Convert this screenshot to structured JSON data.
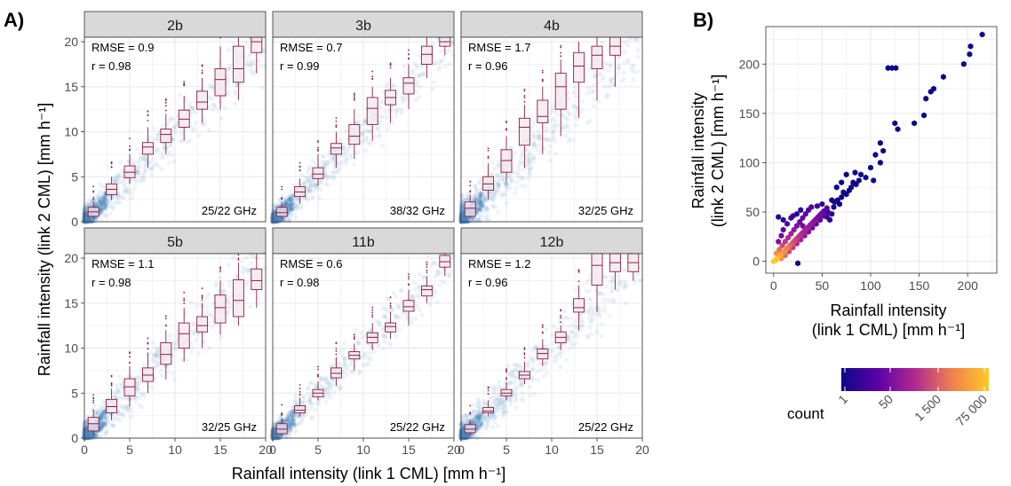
{
  "panel_labels": {
    "a": "A)",
    "b": "B)"
  },
  "colors": {
    "strip_bg": "#d9d9d9",
    "grid": "#ebebeb",
    "points": "#4a87c0",
    "box_stroke": "#8b2040",
    "box_fill": "#f4e6ee",
    "hex_low": "#0d0887",
    "hex_mid": "#b12a90",
    "hex_high": "#fdca26"
  },
  "chart_data": [
    {
      "type": "scatter",
      "subtype": "faceted scatter with binned boxplots",
      "xlabel": "Rainfall intensity (link 1 CML) [mm h⁻¹]",
      "ylabel": "Rainfall intensity (link 2 CML) [mm h⁻¹]",
      "xlim": [
        0,
        20
      ],
      "ylim": [
        0,
        20.5
      ],
      "x_ticks": [
        "0",
        "5",
        "10",
        "15",
        "20"
      ],
      "y_ticks": [
        "0",
        "5",
        "10",
        "15",
        "20"
      ],
      "grid": true,
      "facets": [
        {
          "name": "2b",
          "rmse": "RMSE = 0.9",
          "r": "r = 0.98",
          "freq": "25/22 GHz",
          "boxes": [
            [
              1,
              0.3,
              0.6,
              1.1,
              1.6,
              2.2
            ],
            [
              3,
              2.4,
              3.0,
              3.6,
              4.2,
              5.0
            ],
            [
              5,
              4.2,
              4.9,
              5.5,
              6.2,
              7.5
            ],
            [
              7,
              6.0,
              7.5,
              8.3,
              8.8,
              10.5
            ],
            [
              9,
              7.5,
              8.8,
              9.7,
              10.3,
              12.0
            ],
            [
              11,
              9.0,
              10.5,
              11.4,
              12.4,
              14.0
            ],
            [
              13,
              11.0,
              12.5,
              13.3,
              14.5,
              16.0
            ],
            [
              15,
              12.5,
              14.0,
              15.8,
              17.0,
              19.5
            ],
            [
              17,
              13.5,
              15.5,
              17.0,
              19.5,
              20.5
            ],
            [
              19,
              16.5,
              18.8,
              20.0,
              20.5,
              20.5
            ]
          ]
        },
        {
          "name": "3b",
          "rmse": "RMSE = 0.7",
          "r": "r = 0.99",
          "freq": "38/32 GHz",
          "boxes": [
            [
              1,
              0.3,
              0.6,
              1.0,
              1.6,
              2.2
            ],
            [
              3,
              2.0,
              2.8,
              3.3,
              3.9,
              4.8
            ],
            [
              5,
              4.0,
              4.8,
              5.3,
              6.0,
              7.5
            ],
            [
              7,
              6.0,
              7.5,
              8.2,
              8.7,
              10.0
            ],
            [
              9,
              7.0,
              8.6,
              9.5,
              10.8,
              12.5
            ],
            [
              11,
              9.0,
              10.8,
              12.6,
              13.8,
              15.0
            ],
            [
              13,
              11.0,
              13.0,
              13.8,
              14.6,
              16.0
            ],
            [
              15,
              12.5,
              14.2,
              15.4,
              16.0,
              17.5
            ],
            [
              17,
              16.0,
              17.5,
              18.6,
              19.5,
              20.5
            ],
            [
              19,
              18.5,
              19.5,
              20.0,
              20.5,
              20.5
            ]
          ]
        },
        {
          "name": "4b",
          "rmse": "RMSE = 1.7",
          "r": "r = 0.96",
          "freq": "32/25 GHz",
          "boxes": [
            [
              1,
              0.3,
              0.6,
              1.5,
              2.2,
              3.0
            ],
            [
              3,
              2.5,
              3.5,
              4.2,
              5.0,
              6.5
            ],
            [
              5,
              4.5,
              5.5,
              6.8,
              8.0,
              9.5
            ],
            [
              7,
              6.0,
              8.5,
              10.5,
              11.5,
              13.0
            ],
            [
              9,
              7.5,
              11.0,
              11.7,
              13.5,
              15.0
            ],
            [
              11,
              9.5,
              12.5,
              15.0,
              16.5,
              18.0
            ],
            [
              13,
              11.5,
              15.5,
              17.3,
              18.8,
              20.0
            ],
            [
              15,
              13.5,
              17.0,
              18.5,
              19.5,
              20.5
            ],
            [
              17,
              15.0,
              18.5,
              19.5,
              20.5,
              20.5
            ]
          ]
        },
        {
          "name": "5b",
          "rmse": "RMSE = 1.1",
          "r": "r = 0.98",
          "freq": "32/25 GHz",
          "boxes": [
            [
              1,
              0.3,
              0.8,
              1.6,
              2.3,
              3.2
            ],
            [
              3,
              2.0,
              2.8,
              3.5,
              4.3,
              5.5
            ],
            [
              5,
              3.5,
              4.7,
              5.7,
              6.6,
              8.0
            ],
            [
              7,
              5.0,
              6.3,
              7.0,
              7.8,
              9.5
            ],
            [
              9,
              6.5,
              8.2,
              9.3,
              10.6,
              12.0
            ],
            [
              11,
              8.5,
              10.0,
              11.6,
              12.8,
              14.5
            ],
            [
              13,
              10.0,
              11.8,
              12.5,
              13.5,
              15.0
            ],
            [
              15,
              11.5,
              12.8,
              14.5,
              15.9,
              17.5
            ],
            [
              17,
              12.5,
              13.5,
              15.3,
              17.6,
              19.5
            ],
            [
              19,
              14.5,
              16.5,
              17.5,
              18.8,
              20.5
            ]
          ]
        },
        {
          "name": "11b",
          "rmse": "RMSE = 0.6",
          "r": "r = 0.98",
          "freq": "25/22 GHz",
          "boxes": [
            [
              1,
              0.3,
              0.5,
              1.0,
              1.6,
              2.2
            ],
            [
              3,
              2.4,
              2.8,
              3.1,
              3.6,
              4.5
            ],
            [
              5,
              4.2,
              4.6,
              5.0,
              5.4,
              6.3
            ],
            [
              7,
              5.8,
              6.7,
              7.2,
              7.8,
              9.0
            ],
            [
              9,
              7.5,
              8.8,
              9.2,
              9.6,
              10.5
            ],
            [
              11,
              9.8,
              10.6,
              11.2,
              11.7,
              12.8
            ],
            [
              13,
              11.0,
              11.8,
              12.4,
              12.8,
              14.0
            ],
            [
              15,
              12.5,
              14.1,
              14.6,
              15.3,
              16.5
            ],
            [
              17,
              15.0,
              15.8,
              16.5,
              16.9,
              18.0
            ],
            [
              19,
              18.0,
              19.0,
              19.6,
              20.3,
              20.5
            ]
          ]
        },
        {
          "name": "12b",
          "rmse": "RMSE = 1.2",
          "r": "r = 0.96",
          "freq": "25/22 GHz",
          "boxes": [
            [
              1,
              0.3,
              0.6,
              1.0,
              1.5,
              2.0
            ],
            [
              3,
              2.4,
              2.8,
              3.0,
              3.4,
              4.2
            ],
            [
              5,
              4.2,
              4.7,
              5.0,
              5.4,
              6.2
            ],
            [
              7,
              6.0,
              6.6,
              7.0,
              7.4,
              8.5
            ],
            [
              9,
              8.0,
              8.8,
              9.4,
              9.9,
              11.0
            ],
            [
              11,
              9.8,
              10.6,
              11.2,
              11.8,
              12.5
            ],
            [
              13,
              12.0,
              14.0,
              14.5,
              15.5,
              17.0
            ],
            [
              15,
              14.0,
              17.0,
              19.2,
              20.5,
              20.5
            ],
            [
              17,
              16.5,
              18.5,
              19.5,
              20.5,
              20.5
            ],
            [
              19,
              17.5,
              18.5,
              19.5,
              20.5,
              20.5
            ]
          ]
        }
      ]
    },
    {
      "type": "scatter",
      "subtype": "hexbin",
      "xlabel_lines": [
        "Rainfall intensity",
        "(link 1 CML) [mm h⁻¹]"
      ],
      "ylabel_lines": [
        "Rainfall intensity",
        "(link 2 CML) [mm h⁻¹]"
      ],
      "xlim": [
        -8,
        230
      ],
      "ylim": [
        -12,
        238
      ],
      "x_ticks": [
        "0",
        "50",
        "100",
        "150",
        "200"
      ],
      "y_ticks": [
        "0",
        "50",
        "100",
        "150",
        "200"
      ],
      "grid": true,
      "legend": {
        "title": "count",
        "position": "bottom",
        "labels": [
          "1",
          "50",
          "1 500",
          "75 000"
        ]
      },
      "points": [
        {
          "x": 0,
          "y": 0,
          "c": 1.0
        },
        {
          "x": 2,
          "y": 1,
          "c": 0.98
        },
        {
          "x": 4,
          "y": 3,
          "c": 0.95
        },
        {
          "x": 6,
          "y": 5,
          "c": 0.9
        },
        {
          "x": 8,
          "y": 7,
          "c": 0.86
        },
        {
          "x": 10,
          "y": 9,
          "c": 0.82
        },
        {
          "x": 12,
          "y": 11,
          "c": 0.78
        },
        {
          "x": 14,
          "y": 13,
          "c": 0.74
        },
        {
          "x": 16,
          "y": 15,
          "c": 0.7
        },
        {
          "x": 18,
          "y": 17,
          "c": 0.66
        },
        {
          "x": 20,
          "y": 19,
          "c": 0.62
        },
        {
          "x": 22,
          "y": 21,
          "c": 0.58
        },
        {
          "x": 24,
          "y": 23,
          "c": 0.55
        },
        {
          "x": 26,
          "y": 25,
          "c": 0.52
        },
        {
          "x": 28,
          "y": 27,
          "c": 0.5
        },
        {
          "x": 30,
          "y": 29,
          "c": 0.48
        },
        {
          "x": 32,
          "y": 31,
          "c": 0.46
        },
        {
          "x": 34,
          "y": 33,
          "c": 0.44
        },
        {
          "x": 36,
          "y": 35,
          "c": 0.42
        },
        {
          "x": 38,
          "y": 37,
          "c": 0.4
        },
        {
          "x": 40,
          "y": 39,
          "c": 0.38
        },
        {
          "x": 42,
          "y": 41,
          "c": 0.36
        },
        {
          "x": 44,
          "y": 43,
          "c": 0.34
        },
        {
          "x": 46,
          "y": 45,
          "c": 0.32
        },
        {
          "x": 48,
          "y": 47,
          "c": 0.3
        },
        {
          "x": 50,
          "y": 49,
          "c": 0.28
        },
        {
          "x": 52,
          "y": 51,
          "c": 0.25
        },
        {
          "x": 55,
          "y": 54,
          "c": 0.22
        },
        {
          "x": 3,
          "y": 8,
          "c": 0.8
        },
        {
          "x": 6,
          "y": 12,
          "c": 0.7
        },
        {
          "x": 9,
          "y": 16,
          "c": 0.6
        },
        {
          "x": 12,
          "y": 20,
          "c": 0.55
        },
        {
          "x": 15,
          "y": 24,
          "c": 0.5
        },
        {
          "x": 18,
          "y": 28,
          "c": 0.45
        },
        {
          "x": 21,
          "y": 32,
          "c": 0.4
        },
        {
          "x": 24,
          "y": 36,
          "c": 0.35
        },
        {
          "x": 27,
          "y": 40,
          "c": 0.3
        },
        {
          "x": 30,
          "y": 44,
          "c": 0.28
        },
        {
          "x": 33,
          "y": 48,
          "c": 0.25
        },
        {
          "x": 36,
          "y": 52,
          "c": 0.22
        },
        {
          "x": 39,
          "y": 55,
          "c": 0.2
        },
        {
          "x": 8,
          "y": 3,
          "c": 0.8
        },
        {
          "x": 12,
          "y": 6,
          "c": 0.7
        },
        {
          "x": 16,
          "y": 10,
          "c": 0.6
        },
        {
          "x": 20,
          "y": 14,
          "c": 0.55
        },
        {
          "x": 24,
          "y": 18,
          "c": 0.5
        },
        {
          "x": 28,
          "y": 22,
          "c": 0.45
        },
        {
          "x": 32,
          "y": 26,
          "c": 0.4
        },
        {
          "x": 36,
          "y": 30,
          "c": 0.35
        },
        {
          "x": 40,
          "y": 34,
          "c": 0.3
        },
        {
          "x": 44,
          "y": 38,
          "c": 0.28
        },
        {
          "x": 48,
          "y": 42,
          "c": 0.25
        },
        {
          "x": 52,
          "y": 46,
          "c": 0.22
        },
        {
          "x": 56,
          "y": 50,
          "c": 0.2
        },
        {
          "x": 5,
          "y": 20,
          "c": 0.35
        },
        {
          "x": 8,
          "y": 26,
          "c": 0.3
        },
        {
          "x": 10,
          "y": 32,
          "c": 0.25
        },
        {
          "x": 14,
          "y": 38,
          "c": 0.2
        },
        {
          "x": 18,
          "y": 44,
          "c": 0.15
        },
        {
          "x": 20,
          "y": 46,
          "c": 0.12
        },
        {
          "x": 24,
          "y": 48,
          "c": 0.1
        },
        {
          "x": 28,
          "y": 52,
          "c": 0.1
        },
        {
          "x": 30,
          "y": 36,
          "c": 0.3
        },
        {
          "x": 45,
          "y": 56,
          "c": 0.15
        },
        {
          "x": 50,
          "y": 58,
          "c": 0.12
        },
        {
          "x": 55,
          "y": 45,
          "c": 0.15
        },
        {
          "x": 58,
          "y": 42,
          "c": 0.1
        },
        {
          "x": 62,
          "y": 55,
          "c": 0.05
        },
        {
          "x": 60,
          "y": 48,
          "c": 0.05
        },
        {
          "x": 63,
          "y": 60,
          "c": 0.05
        },
        {
          "x": 66,
          "y": 62,
          "c": 0.0
        },
        {
          "x": 68,
          "y": 58,
          "c": 0.0
        },
        {
          "x": 70,
          "y": 65,
          "c": 0.0
        },
        {
          "x": 72,
          "y": 70,
          "c": 0.0
        },
        {
          "x": 75,
          "y": 68,
          "c": 0.0
        },
        {
          "x": 78,
          "y": 72,
          "c": 0.0
        },
        {
          "x": 80,
          "y": 75,
          "c": 0.0
        },
        {
          "x": 82,
          "y": 80,
          "c": 0.0
        },
        {
          "x": 85,
          "y": 78,
          "c": 0.0
        },
        {
          "x": 88,
          "y": 82,
          "c": 0.0
        },
        {
          "x": 84,
          "y": 90,
          "c": 0.0
        },
        {
          "x": 90,
          "y": 88,
          "c": 0.0
        },
        {
          "x": 95,
          "y": 85,
          "c": 0.0
        },
        {
          "x": 100,
          "y": 95,
          "c": 0.0
        },
        {
          "x": 105,
          "y": 108,
          "c": 0.0
        },
        {
          "x": 110,
          "y": 100,
          "c": 0.0
        },
        {
          "x": 103,
          "y": 82,
          "c": 0.0
        },
        {
          "x": 75,
          "y": 88,
          "c": 0.0
        },
        {
          "x": 70,
          "y": 80,
          "c": 0.0
        },
        {
          "x": 65,
          "y": 75,
          "c": 0.0
        },
        {
          "x": 60,
          "y": 62,
          "c": 0.0
        },
        {
          "x": 110,
          "y": 120,
          "c": 0.0
        },
        {
          "x": 113,
          "y": 112,
          "c": 0.0
        },
        {
          "x": 118,
          "y": 196,
          "c": 0.0
        },
        {
          "x": 122,
          "y": 196,
          "c": 0.0
        },
        {
          "x": 126,
          "y": 196,
          "c": 0.0
        },
        {
          "x": 125,
          "y": 140,
          "c": 0.0
        },
        {
          "x": 128,
          "y": 134,
          "c": 0.0
        },
        {
          "x": 145,
          "y": 140,
          "c": 0.0
        },
        {
          "x": 155,
          "y": 148,
          "c": 0.0
        },
        {
          "x": 157,
          "y": 165,
          "c": 0.0
        },
        {
          "x": 162,
          "y": 172,
          "c": 0.0
        },
        {
          "x": 165,
          "y": 175,
          "c": 0.0
        },
        {
          "x": 175,
          "y": 187,
          "c": 0.0
        },
        {
          "x": 196,
          "y": 200,
          "c": 0.0
        },
        {
          "x": 202,
          "y": 210,
          "c": 0.0
        },
        {
          "x": 203,
          "y": 218,
          "c": 0.0
        },
        {
          "x": 215,
          "y": 230,
          "c": 0.0
        },
        {
          "x": 25,
          "y": -2,
          "c": 0.0
        },
        {
          "x": 5,
          "y": 45,
          "c": 0.05
        },
        {
          "x": 10,
          "y": 42,
          "c": 0.1
        }
      ]
    }
  ]
}
